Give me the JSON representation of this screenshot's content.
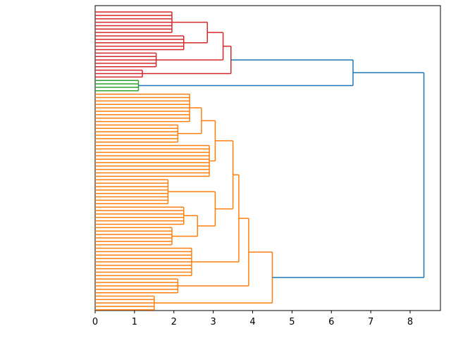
{
  "chart_data": {
    "type": "dendrogram",
    "orientation": "right",
    "xlim": [
      0,
      8.77
    ],
    "xticks": [
      0,
      1,
      2,
      3,
      4,
      5,
      6,
      7,
      8
    ],
    "tree": {
      "h": 8.35,
      "color": "#1f77b4",
      "children": [
        {
          "h": 6.55,
          "color": "#1f77b4",
          "children": [
            {
              "h": 3.45,
              "color": "#d62728",
              "children": [
                {
                  "h": 3.25,
                  "children": [
                    {
                      "h": 2.85,
                      "children": [
                        {
                          "h": 1.95,
                          "n": 7
                        },
                        {
                          "h": 2.25,
                          "n": 5
                        }
                      ]
                    },
                    {
                      "h": 1.55,
                      "n": 5
                    }
                  ]
                },
                {
                  "h": 1.2,
                  "n": 3
                }
              ]
            },
            {
              "h": 1.1,
              "n": 4,
              "color": "#2ca02c"
            }
          ]
        },
        {
          "h": 4.5,
          "color": "#ff7f0e",
          "children": [
            {
              "h": 3.9,
              "children": [
                {
                  "h": 3.65,
                  "children": [
                    {
                      "h": 3.5,
                      "children": [
                        {
                          "h": 3.05,
                          "children": [
                            {
                              "h": 2.7,
                              "children": [
                                {
                                  "h": 2.4,
                                  "n": 9
                                },
                                {
                                  "h": 2.1,
                                  "n": 6
                                }
                              ]
                            },
                            {
                              "h": 2.9,
                              "n": 10
                            }
                          ]
                        },
                        {
                          "h": 3.05,
                          "children": [
                            {
                              "h": 1.85,
                              "n": 8
                            },
                            {
                              "h": 2.6,
                              "children": [
                                {
                                  "h": 2.25,
                                  "n": 6
                                },
                                {
                                  "h": 1.95,
                                  "n": 6
                                }
                              ]
                            }
                          ]
                        }
                      ]
                    },
                    {
                      "h": 2.45,
                      "n": 9
                    }
                  ]
                },
                {
                  "h": 2.1,
                  "n": 5
                }
              ]
            },
            {
              "h": 1.5,
              "n": 5
            }
          ]
        }
      ]
    }
  }
}
